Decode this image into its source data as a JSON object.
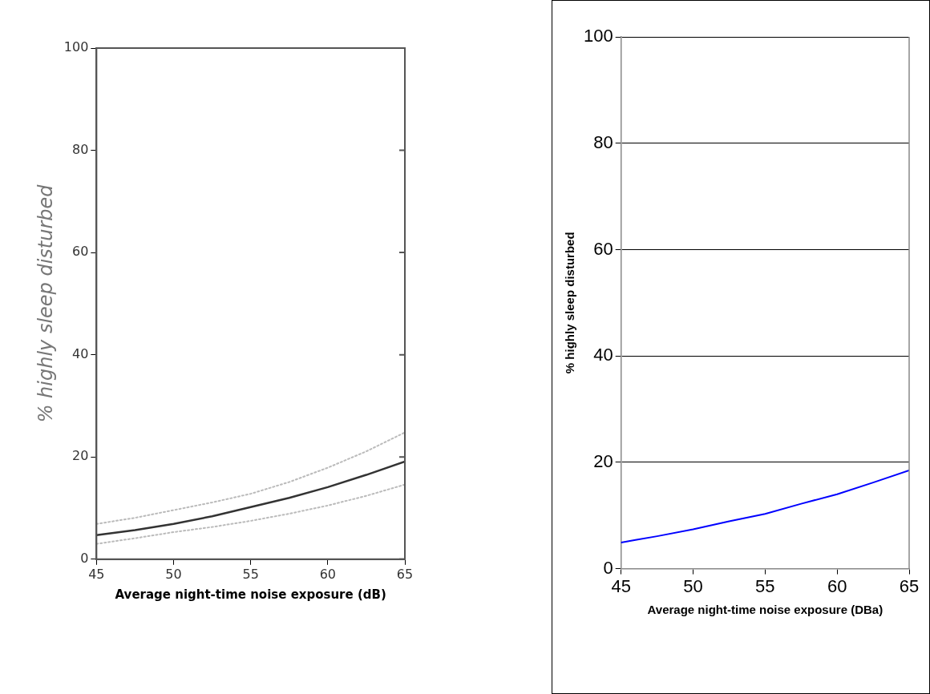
{
  "chart_data": [
    {
      "type": "line",
      "xlabel": "Average night-time noise exposure (dB)",
      "ylabel": "% highly sleep disturbed",
      "x": [
        45,
        47.5,
        50,
        52.5,
        55,
        57.5,
        60,
        62.5,
        65
      ],
      "series": [
        {
          "color": "#bbbbbb",
          "line_style": "dotted",
          "values": [
            6.9,
            8.1,
            9.6,
            11.1,
            12.8,
            15.1,
            17.9,
            21.1,
            24.8
          ]
        },
        {
          "color": "#333333",
          "line_style": "solid",
          "values": [
            4.7,
            5.7,
            6.9,
            8.4,
            10.2,
            12.0,
            14.1,
            16.5,
            19.1
          ]
        },
        {
          "color": "#bbbbbb",
          "line_style": "dotted",
          "values": [
            3.0,
            4.1,
            5.3,
            6.3,
            7.5,
            8.9,
            10.5,
            12.4,
            14.6
          ]
        }
      ],
      "xlim": [
        45,
        65
      ],
      "ylim": [
        0,
        100
      ],
      "xticks": [
        45,
        50,
        55,
        60,
        65
      ],
      "yticks": [
        0,
        20,
        40,
        60,
        80,
        100
      ],
      "grid": false,
      "marker": "none"
    },
    {
      "type": "line",
      "xlabel": "Average night-time noise exposure (DBa)",
      "ylabel": "% highly sleep disturbed",
      "x": [
        45,
        46,
        47.5,
        50,
        52.5,
        55,
        57.5,
        60,
        62.5,
        65
      ],
      "series": [
        {
          "color": "#0000ff",
          "values": [
            4.9,
            5.4,
            6.1,
            7.4,
            8.9,
            10.3,
            12.2,
            14.0,
            16.2,
            18.5
          ]
        }
      ],
      "xlim": [
        45,
        65
      ],
      "ylim": [
        0,
        100
      ],
      "xticks": [
        45,
        50,
        55,
        60,
        65
      ],
      "yticks": [
        0,
        20,
        40,
        60,
        80,
        100
      ],
      "grid": "y",
      "marker": "none"
    }
  ]
}
